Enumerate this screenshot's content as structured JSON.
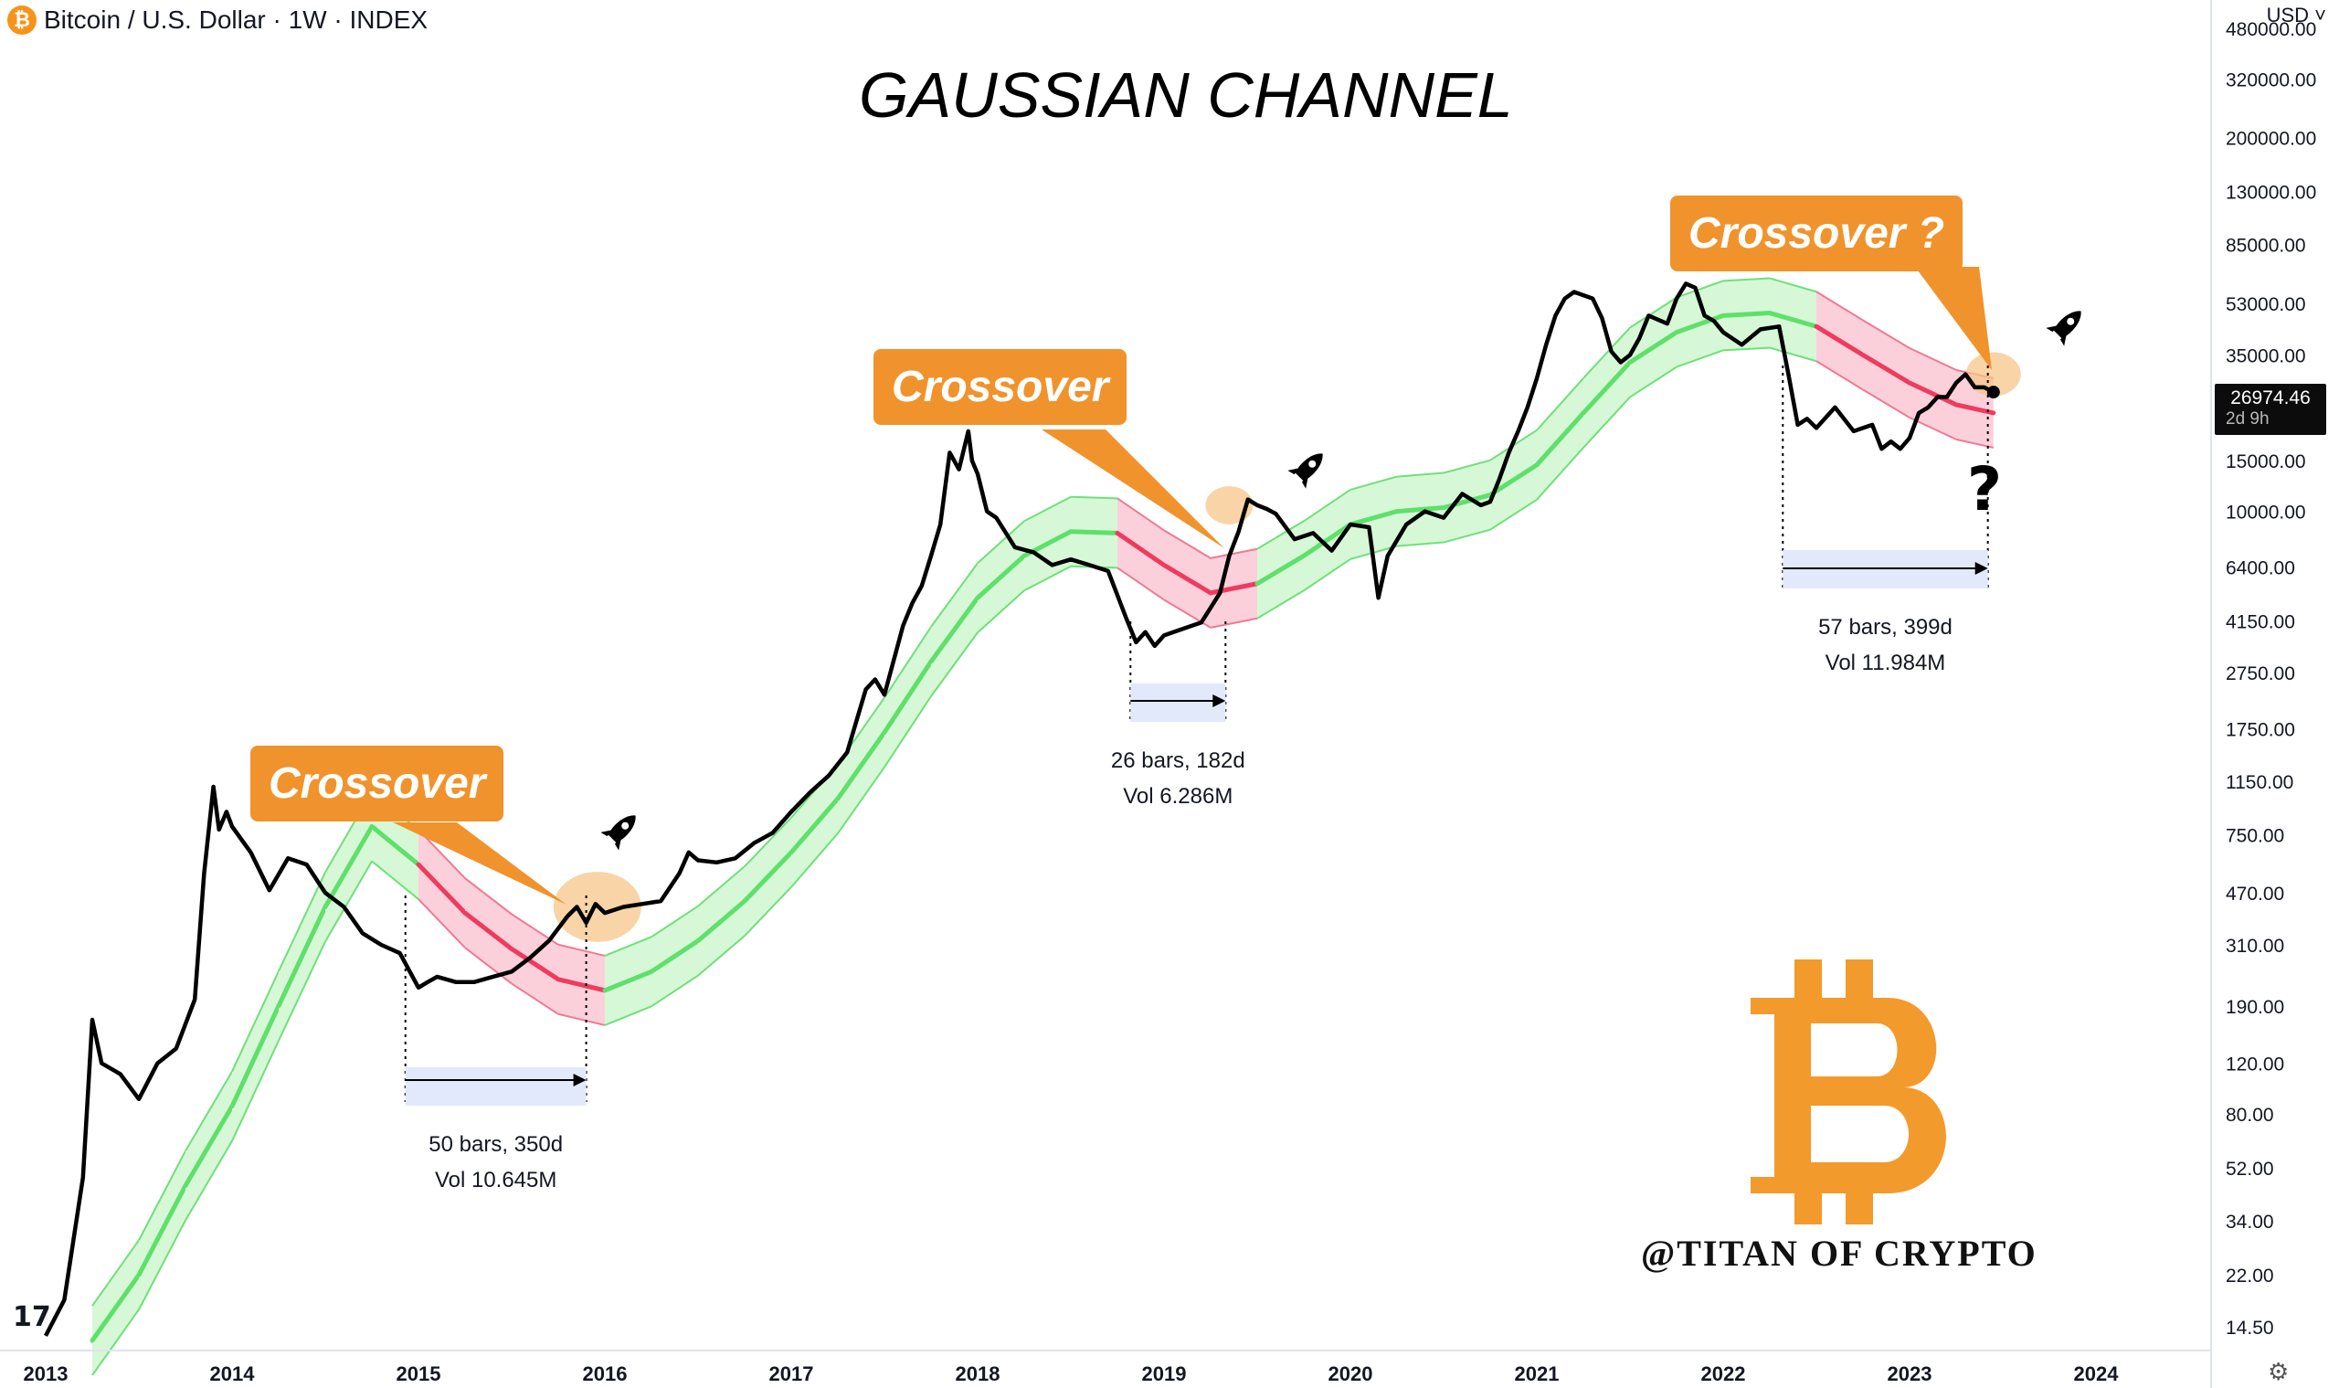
{
  "header": {
    "symbol": "Bitcoin / U.S. Dollar · 1W · INDEX",
    "currency": "USD ˅",
    "coin_glyph": "₿"
  },
  "title": "GAUSSIAN CHANNEL",
  "price_tag": {
    "price": "26974.46",
    "timer": "2d 9h"
  },
  "callouts": [
    "Crossover",
    "Crossover",
    "Crossover ?"
  ],
  "measurements": [
    {
      "bars": "50 bars, 350d",
      "vol": "Vol 10.645M"
    },
    {
      "bars": "26 bars, 182d",
      "vol": "Vol 6.286M"
    },
    {
      "bars": "57 bars, 399d",
      "vol": "Vol 11.984M"
    }
  ],
  "question_mark": "?",
  "watermark": "@TITAN OF CRYPTO",
  "tv_logo": "17",
  "settings_icon": "⚙",
  "colors": {
    "accent": "#f0932c",
    "channel_green": "#5ee06b",
    "channel_red": "#ee3b5e",
    "price": "#000000"
  },
  "chart_data": {
    "type": "line",
    "yscale": "log",
    "ylim": [
      12,
      520000
    ],
    "xlim": [
      2013.0,
      2024.65
    ],
    "x_ticks": [
      "2013",
      "2014",
      "2015",
      "2016",
      "2017",
      "2018",
      "2019",
      "2020",
      "2021",
      "2022",
      "2023",
      "2024"
    ],
    "y_ticks": [
      "480000.00",
      "320000.00",
      "200000.00",
      "130000.00",
      "85000.00",
      "53000.00",
      "35000.00",
      "15000.00",
      "10000.00",
      "6400.00",
      "4150.00",
      "2750.00",
      "1750.00",
      "1150.00",
      "750.00",
      "470.00",
      "310.00",
      "190.00",
      "120.00",
      "80.00",
      "52.00",
      "34.00",
      "22.00",
      "14.50"
    ],
    "series": [
      {
        "role": "price",
        "x": [
          2013.0,
          2013.1,
          2013.2,
          2013.25,
          2013.3,
          2013.4,
          2013.5,
          2013.6,
          2013.7,
          2013.8,
          2013.85,
          2013.9,
          2013.93,
          2013.97,
          2014.0,
          2014.1,
          2014.2,
          2014.3,
          2014.4,
          2014.5,
          2014.6,
          2014.7,
          2014.8,
          2014.9,
          2015.0,
          2015.05,
          2015.1,
          2015.2,
          2015.3,
          2015.4,
          2015.5,
          2015.6,
          2015.7,
          2015.8,
          2015.85,
          2015.9,
          2015.95,
          2016.0,
          2016.1,
          2016.2,
          2016.3,
          2016.4,
          2016.45,
          2016.5,
          2016.6,
          2016.7,
          2016.8,
          2016.9,
          2017.0,
          2017.1,
          2017.2,
          2017.3,
          2017.4,
          2017.45,
          2017.5,
          2017.6,
          2017.65,
          2017.7,
          2017.75,
          2017.8,
          2017.85,
          2017.9,
          2017.95,
          2017.97,
          2018.0,
          2018.05,
          2018.1,
          2018.2,
          2018.3,
          2018.4,
          2018.5,
          2018.6,
          2018.7,
          2018.8,
          2018.85,
          2018.9,
          2018.95,
          2019.0,
          2019.1,
          2019.2,
          2019.3,
          2019.35,
          2019.4,
          2019.45,
          2019.5,
          2019.55,
          2019.6,
          2019.7,
          2019.8,
          2019.9,
          2020.0,
          2020.1,
          2020.15,
          2020.2,
          2020.3,
          2020.4,
          2020.5,
          2020.6,
          2020.7,
          2020.75,
          2020.8,
          2020.85,
          2020.9,
          2020.95,
          2021.0,
          2021.05,
          2021.1,
          2021.15,
          2021.2,
          2021.3,
          2021.35,
          2021.4,
          2021.45,
          2021.5,
          2021.55,
          2021.6,
          2021.7,
          2021.75,
          2021.8,
          2021.85,
          2021.9,
          2021.95,
          2022.0,
          2022.1,
          2022.2,
          2022.3,
          2022.35,
          2022.4,
          2022.45,
          2022.5,
          2022.6,
          2022.7,
          2022.8,
          2022.85,
          2022.9,
          2022.95,
          2023.0,
          2023.05,
          2023.1,
          2023.15,
          2023.2,
          2023.25,
          2023.3,
          2023.35,
          2023.4,
          2023.45
        ],
        "y": [
          13.5,
          18,
          48,
          170,
          120,
          110,
          90,
          120,
          135,
          200,
          550,
          1100,
          780,
          900,
          800,
          650,
          480,
          620,
          590,
          470,
          420,
          340,
          310,
          290,
          220,
          230,
          240,
          230,
          230,
          240,
          250,
          280,
          320,
          390,
          420,
          370,
          430,
          400,
          420,
          430,
          440,
          550,
          650,
          610,
          600,
          620,
          700,
          760,
          900,
          1050,
          1200,
          1450,
          2400,
          2600,
          2300,
          4000,
          4800,
          5500,
          7000,
          9000,
          16000,
          14000,
          19000,
          15000,
          13500,
          10000,
          9500,
          7500,
          7200,
          6500,
          6800,
          6500,
          6200,
          4200,
          3500,
          3800,
          3400,
          3700,
          3900,
          4100,
          5200,
          7000,
          8500,
          11000,
          10500,
          10200,
          9800,
          8000,
          8400,
          7300,
          9000,
          8800,
          5000,
          7000,
          9000,
          10000,
          9500,
          11500,
          10500,
          10800,
          13000,
          16000,
          19000,
          23000,
          29000,
          38000,
          48000,
          55000,
          58000,
          55000,
          47000,
          36000,
          33000,
          35000,
          40000,
          48000,
          45000,
          55000,
          62000,
          60000,
          48000,
          46000,
          42000,
          38000,
          43000,
          44000,
          30000,
          20000,
          21000,
          19500,
          23000,
          19000,
          20000,
          16500,
          17500,
          16500,
          18000,
          22000,
          23000,
          25000,
          25000,
          28000,
          30000,
          27000,
          27000,
          26000
        ],
        "color": "#000000"
      },
      {
        "role": "channel_mid",
        "x": [
          2013.25,
          2013.5,
          2013.75,
          2014.0,
          2014.25,
          2014.5,
          2014.75,
          2015.0,
          2015.25,
          2015.5,
          2015.75,
          2016.0,
          2016.25,
          2016.5,
          2016.75,
          2017.0,
          2017.25,
          2017.5,
          2017.75,
          2018.0,
          2018.25,
          2018.5,
          2018.75,
          2019.0,
          2019.25,
          2019.5,
          2019.75,
          2020.0,
          2020.25,
          2020.5,
          2020.75,
          2021.0,
          2021.25,
          2021.5,
          2021.75,
          2022.0,
          2022.25,
          2022.5,
          2022.75,
          2023.0,
          2023.25,
          2023.45
        ],
        "y": [
          13,
          22,
          45,
          85,
          190,
          420,
          800,
          590,
          400,
          300,
          235,
          215,
          250,
          320,
          440,
          650,
          1000,
          1700,
          3000,
          5000,
          7000,
          8500,
          8400,
          6500,
          5200,
          5600,
          7000,
          9000,
          10000,
          10300,
          11400,
          14500,
          22000,
          33000,
          42000,
          48000,
          49000,
          44000,
          35000,
          28000,
          23500,
          22000
        ],
        "color": "#5ee06b"
      }
    ],
    "crossover_zones": [
      [
        2014.93,
        2015.96
      ],
      [
        2018.82,
        2019.56
      ],
      [
        2022.4,
        2023.45
      ]
    ]
  }
}
